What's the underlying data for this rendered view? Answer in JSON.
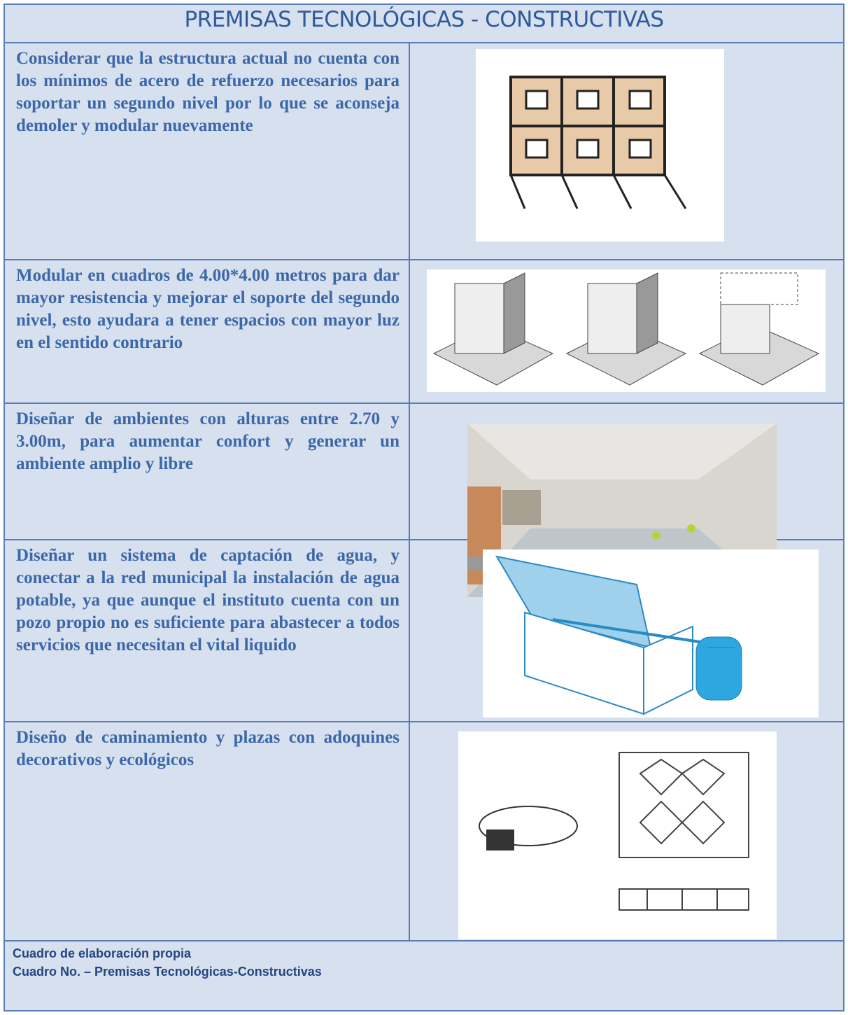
{
  "header": {
    "title": "PREMISAS TECNOLÓGICAS - CONSTRUCTIVAS"
  },
  "rows": [
    {
      "text": "Considerar que la estructura actual no cuenta con los mínimos de acero de refuerzo necesarios para soportar un segundo nivel por lo que se aconseja demoler y modular nuevamente"
    },
    {
      "text": "Modular en cuadros de 4.00*4.00 metros para dar mayor resistencia y mejorar el soporte del segundo nivel, esto ayudara a tener espacios con mayor luz en el sentido contrario"
    },
    {
      "text": "Diseñar de ambientes con alturas entre 2.70 y 3.00m, para aumentar confort y generar un ambiente amplio y libre"
    },
    {
      "text": "Diseñar un sistema de captación de agua,  y conectar a la red municipal la instalación de agua potable, ya que aunque el instituto cuenta con un pozo propio no es suficiente para abastecer a todos servicios que necesitan el vital liquido"
    },
    {
      "text": "Diseño de caminamiento y plazas con adoquines decorativos y ecológicos"
    }
  ],
  "footer": {
    "source": "Cuadro de elaboración propia",
    "caption": "Cuadro No.   – Premisas Tecnológicas-Constructivas"
  }
}
